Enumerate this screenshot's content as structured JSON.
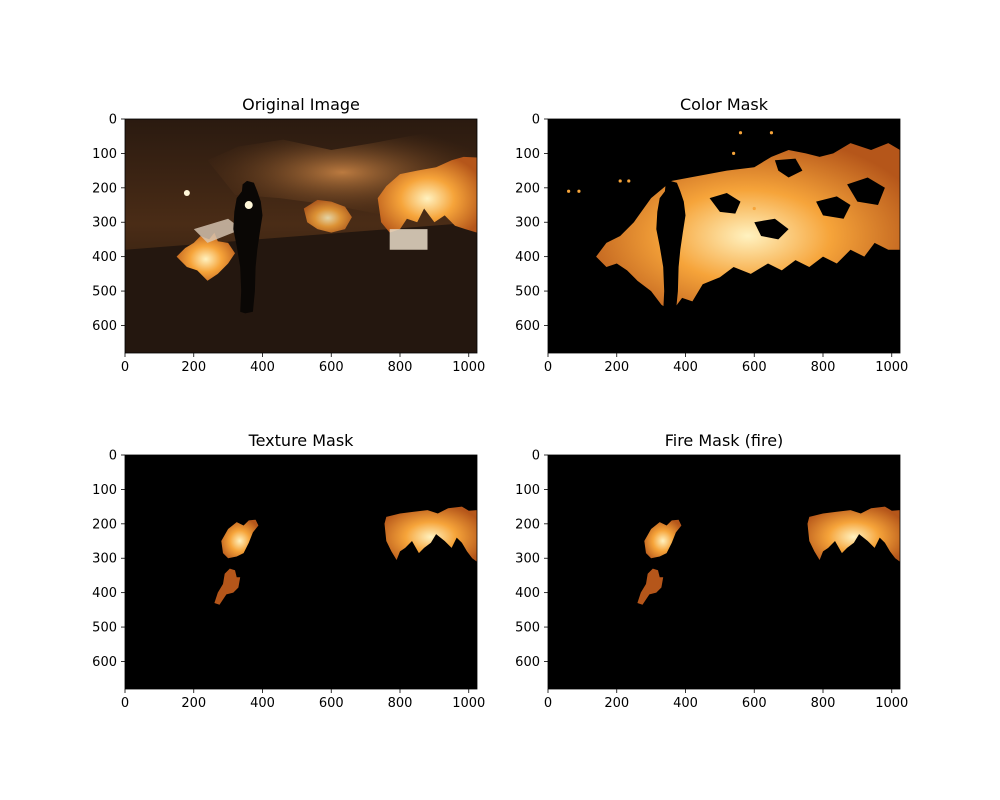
{
  "figure": {
    "background": "#ffffff",
    "panels": [
      {
        "id": "original",
        "title": "Original Image",
        "kind": "photo"
      },
      {
        "id": "color-mask",
        "title": "Color Mask",
        "kind": "color-mask"
      },
      {
        "id": "texture-mask",
        "title": "Texture Mask",
        "kind": "texture-mask"
      },
      {
        "id": "fire-mask",
        "title": "Fire Mask (fire)",
        "kind": "fire-mask"
      }
    ],
    "colors": {
      "fire_bright": "#fff2c0",
      "fire_mid": "#f6a43a",
      "fire_dark": "#b5561a",
      "mask_background": "#000000",
      "scene_dark": "#1c120c",
      "silhouette": "#0a0705"
    }
  },
  "chart_data": [
    {
      "type": "image",
      "title": "Original Image",
      "xlim": [
        0,
        1024
      ],
      "ylim": [
        680,
        0
      ],
      "xticks": [
        0,
        200,
        400,
        600,
        800,
        1000
      ],
      "yticks": [
        0,
        100,
        200,
        300,
        400,
        500,
        600
      ],
      "grid": false
    },
    {
      "type": "image",
      "title": "Color Mask",
      "xlim": [
        0,
        1024
      ],
      "ylim": [
        680,
        0
      ],
      "xticks": [
        0,
        200,
        400,
        600,
        800,
        1000
      ],
      "yticks": [
        0,
        100,
        200,
        300,
        400,
        500,
        600
      ],
      "grid": false
    },
    {
      "type": "image",
      "title": "Texture Mask",
      "xlim": [
        0,
        1024
      ],
      "ylim": [
        680,
        0
      ],
      "xticks": [
        0,
        200,
        400,
        600,
        800,
        1000
      ],
      "yticks": [
        0,
        100,
        200,
        300,
        400,
        500,
        600
      ],
      "grid": false
    },
    {
      "type": "image",
      "title": "Fire Mask (fire)",
      "xlim": [
        0,
        1024
      ],
      "ylim": [
        680,
        0
      ],
      "xticks": [
        0,
        200,
        400,
        600,
        800,
        1000
      ],
      "yticks": [
        0,
        100,
        200,
        300,
        400,
        500,
        600
      ],
      "grid": false
    }
  ]
}
